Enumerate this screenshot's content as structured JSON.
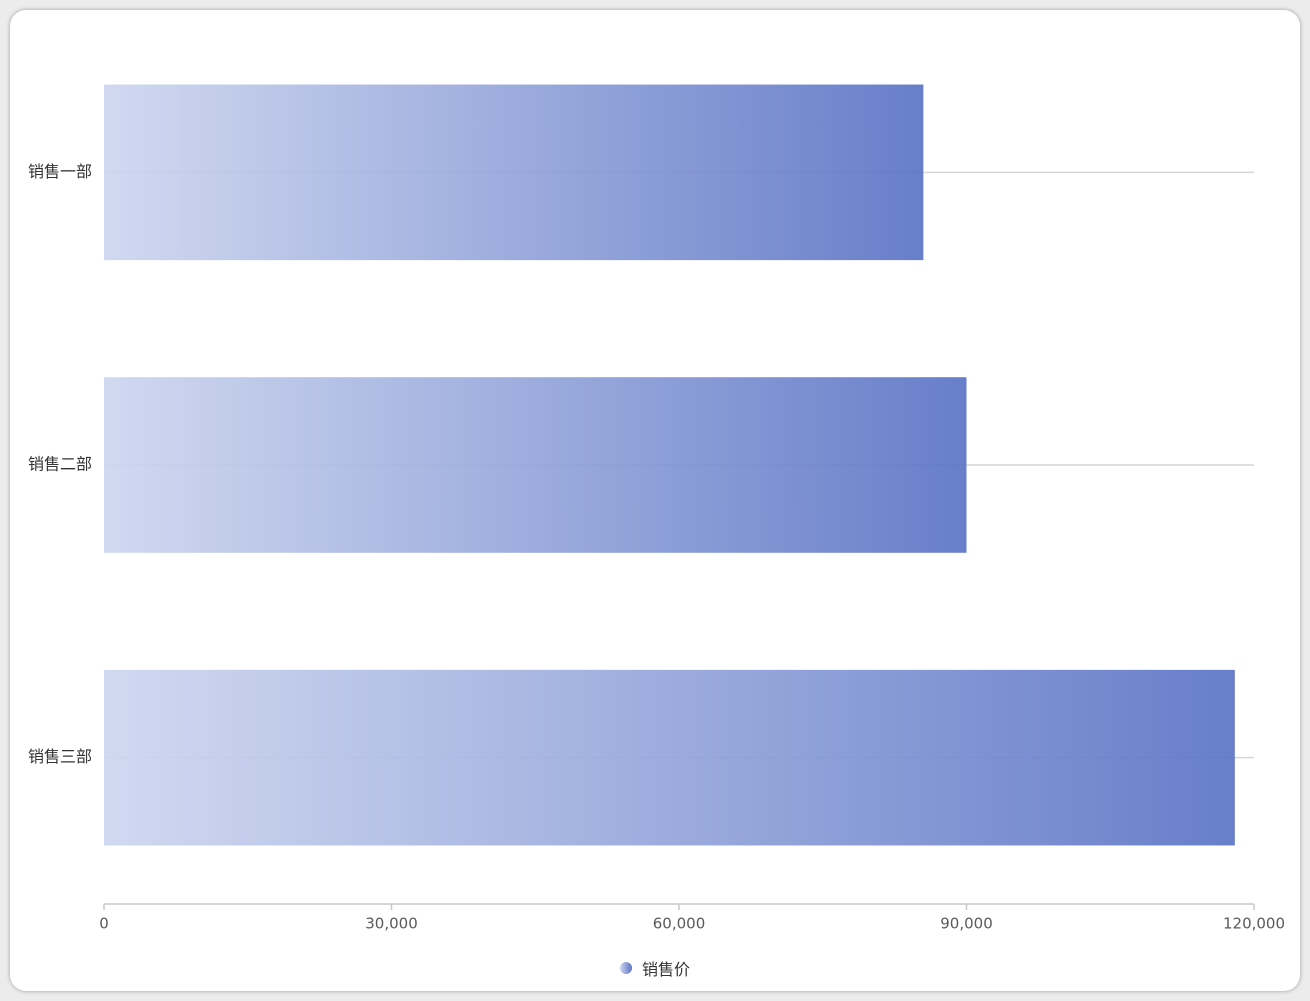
{
  "chart_data": {
    "type": "bar",
    "orientation": "horizontal",
    "categories": [
      "销售一部",
      "销售二部",
      "销售三部"
    ],
    "series": [
      {
        "name": "销售价",
        "values": [
          85500,
          90000,
          118000
        ]
      }
    ],
    "xlim": [
      0,
      120000
    ],
    "xticks": [
      "0",
      "30,000",
      "60,000",
      "90,000",
      "120,000"
    ],
    "grid": true,
    "legend": "bottom-center",
    "colors": {
      "bar_start": "#cdd6ef",
      "bar_end": "#5a73c5",
      "grid": "#d6d6d6",
      "axis": "#c8c8c8"
    }
  }
}
